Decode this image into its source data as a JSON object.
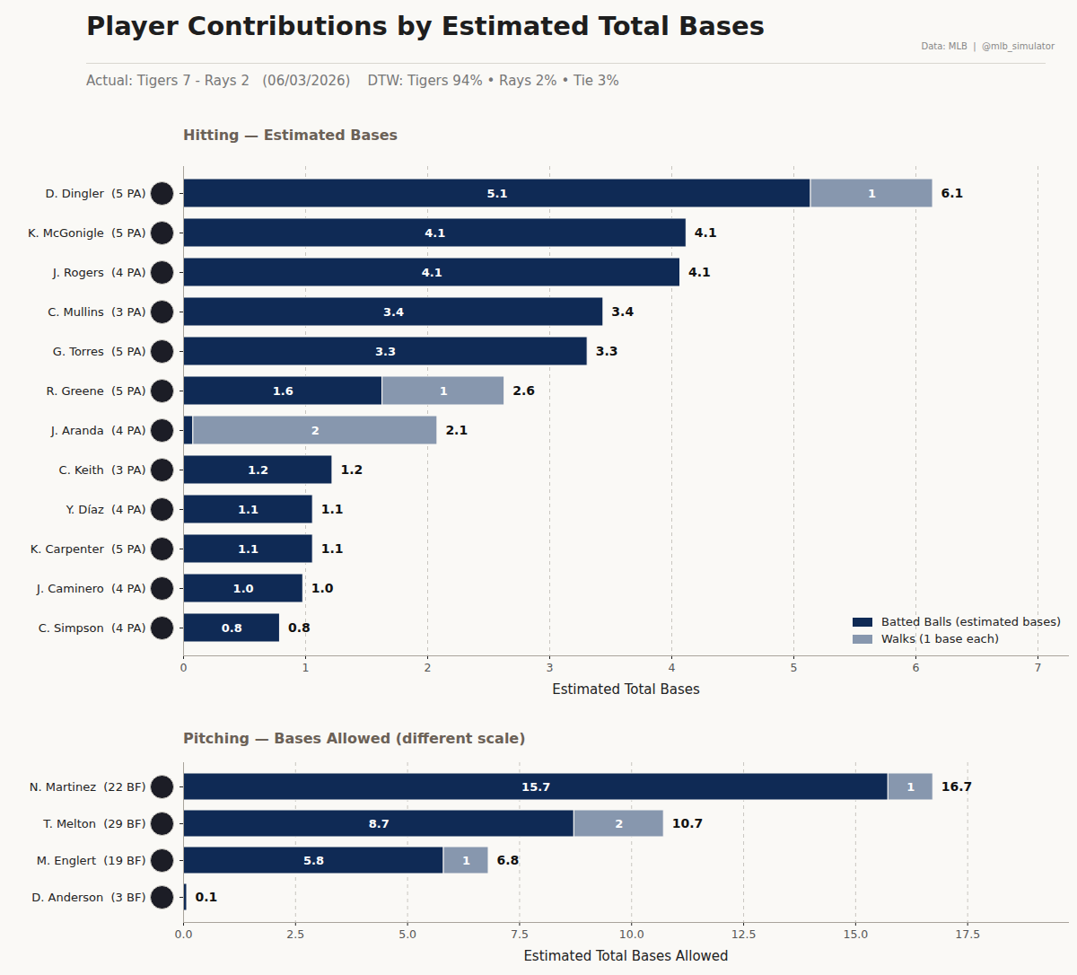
{
  "header": {
    "title": "Player Contributions by Estimated Total Bases",
    "subtitle": "Actual: Tigers 7 - Rays 2   (06/03/2026)    DTW: Tigers 94% • Rays 2% • Tie 3%",
    "source": "Data: MLB  |  @mlb_simulator"
  },
  "chart_data": [
    {
      "type": "bar",
      "title": "Hitting  —  Estimated Bases",
      "orientation": "horizontal",
      "stacked": true,
      "data_labels": true,
      "grid": true,
      "legend": "lower right",
      "categories": [
        "D. Dingler  (5 PA)",
        "K. McGonigle  (5 PA)",
        "J. Rogers  (4 PA)",
        "C. Mullins  (3 PA)",
        "G. Torres  (5 PA)",
        "R. Greene  (5 PA)",
        "J. Aranda  (4 PA)",
        "C. Keith  (3 PA)",
        "Y. Díaz  (4 PA)",
        "K. Carpenter  (5 PA)",
        "J. Caminero  (4 PA)",
        "C. Simpson  (4 PA)"
      ],
      "series": [
        {
          "name": "Batted Balls (estimated bases)",
          "color": "#0f2a55",
          "values": [
            5.14,
            4.12,
            4.07,
            3.44,
            3.31,
            1.63,
            0.08,
            1.22,
            1.06,
            1.06,
            0.98,
            0.79
          ],
          "value_labels": [
            "5.1",
            "4.1",
            "4.1",
            "3.4",
            "3.3",
            "1.6",
            null,
            "1.2",
            "1.1",
            "1.1",
            "1.0",
            "0.8"
          ]
        },
        {
          "name": "Walks (1 base each)",
          "color": "#8797ae",
          "values": [
            1,
            0,
            0,
            0,
            0,
            1,
            2,
            0,
            0,
            0,
            0,
            0
          ],
          "value_labels": [
            "1",
            null,
            null,
            null,
            null,
            "1",
            "2",
            null,
            null,
            null,
            null,
            null
          ]
        }
      ],
      "total_labels": [
        "6.1",
        "4.1",
        "4.1",
        "3.4",
        "3.3",
        "2.6",
        "2.1",
        "1.2",
        "1.1",
        "1.1",
        "1.0",
        "0.8"
      ],
      "xlabel": "Estimated Total Bases",
      "xlim": [
        0,
        7.25
      ],
      "xticks": [
        0,
        1,
        2,
        3,
        4,
        5,
        6,
        7
      ]
    },
    {
      "type": "bar",
      "title": "Pitching  —  Bases Allowed  (different scale)",
      "orientation": "horizontal",
      "stacked": true,
      "data_labels": true,
      "grid": true,
      "categories": [
        "N. Martinez  (22 BF)",
        "T. Melton  (29 BF)",
        "M. Englert  (19 BF)",
        "D. Anderson  (3 BF)"
      ],
      "series": [
        {
          "name": "Batted Balls (estimated bases)",
          "color": "#0f2a55",
          "values": [
            15.73,
            8.72,
            5.81,
            0.08
          ],
          "value_labels": [
            "15.7",
            "8.7",
            "5.8",
            null
          ]
        },
        {
          "name": "Walks (1 base each)",
          "color": "#8797ae",
          "values": [
            1,
            2,
            1,
            0
          ],
          "value_labels": [
            "1",
            "2",
            "1",
            null
          ]
        }
      ],
      "total_labels": [
        "16.7",
        "10.7",
        "6.8",
        "0.1"
      ],
      "xlabel": "Estimated Total Bases Allowed",
      "xlim": [
        0,
        19.75
      ],
      "xticks": [
        {
          "value": 0,
          "label": "0.0"
        },
        2.5,
        {
          "value": 5,
          "label": "5.0"
        },
        7.5,
        {
          "value": 10,
          "label": "10.0"
        },
        12.5,
        {
          "value": 15,
          "label": "15.0"
        },
        17.5
      ]
    }
  ]
}
